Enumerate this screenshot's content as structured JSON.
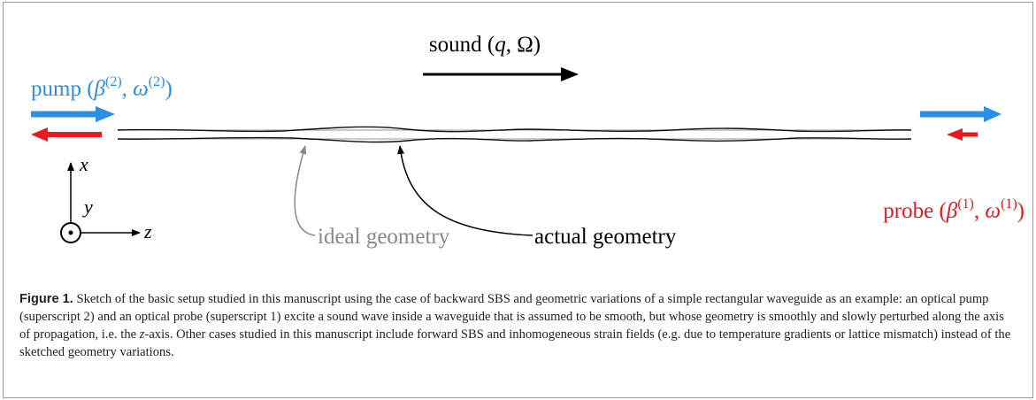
{
  "figure": {
    "sound_label": [
      "sound (",
      "q",
      ", Ω)"
    ],
    "pump_label": [
      "pump (",
      "β",
      "(2)",
      ", ",
      "ω",
      "(2)",
      ")"
    ],
    "probe_label": [
      "probe (",
      "β",
      "(1)",
      ", ",
      "ω",
      "(1)",
      ")"
    ],
    "axis_x": "x",
    "axis_y": "y",
    "axis_z": "z",
    "ideal_label": "ideal geometry",
    "actual_label": "actual geometry"
  },
  "caption": {
    "label": "Figure 1.",
    "text_before": " Sketch of the basic setup studied in this manuscript using the case of backward SBS and geometric variations of a simple rectangular waveguide as an example: an optical pump (superscript 2) and an optical probe (superscript 1) excite a sound wave inside a waveguide that is assumed to be smooth, but whose geometry is smoothly and slowly perturbed along the axis of propagation, i.e. the ",
    "text_italic": "z",
    "text_after": "-axis. Other cases studied in this manuscript include forward SBS and inhomogeneous strain fields (e.g. due to temperature gradients or lattice mismatch) instead of the sketched geometry variations."
  }
}
